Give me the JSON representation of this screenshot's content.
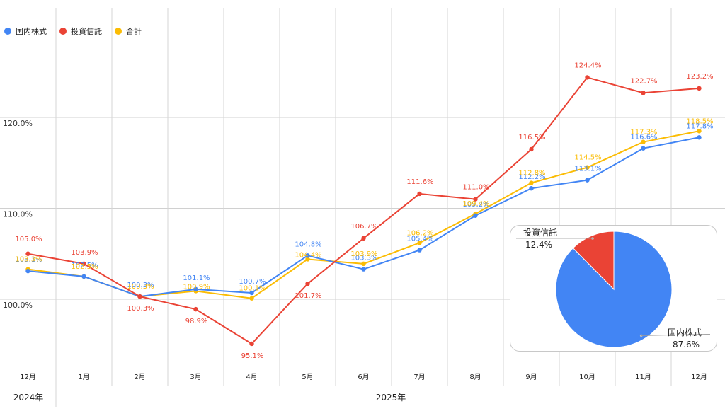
{
  "chart_data": [
    {
      "type": "line",
      "categories": [
        "12月",
        "1月",
        "2月",
        "3月",
        "4月",
        "5月",
        "6月",
        "7月",
        "8月",
        "9月",
        "10月",
        "11月",
        "12月"
      ],
      "year_labels": [
        "2024年",
        "2025年"
      ],
      "y_ticks": [
        "100.0%",
        "110.0%",
        "120.0%"
      ],
      "ylim": [
        92.4,
        132.0
      ],
      "grid": true,
      "legend": "top-left",
      "series": [
        {
          "name": "国内株式",
          "color": "#4285f4",
          "values": [
            103.1,
            102.5,
            100.3,
            101.1,
            100.7,
            104.8,
            103.3,
            105.4,
            109.2,
            112.2,
            113.1,
            116.6,
            117.8
          ]
        },
        {
          "name": "投資信託",
          "color": "#ea4335",
          "values": [
            105.0,
            103.9,
            100.3,
            98.9,
            95.1,
            101.7,
            106.7,
            111.6,
            111.0,
            116.5,
            124.4,
            122.7,
            123.2
          ]
        },
        {
          "name": "合計",
          "color": "#fbbc04",
          "values": [
            103.3,
            102.5,
            100.3,
            100.9,
            100.1,
            104.4,
            103.9,
            106.2,
            109.4,
            112.8,
            114.5,
            117.3,
            118.5
          ]
        }
      ],
      "data_labels": {
        "国内株式": [
          "103.1%",
          "102.5%",
          "100.3%",
          "101.1%",
          "100.7%",
          "104.8%",
          "103.3%",
          "105.4%",
          "109.2%",
          "112.2%",
          "113.1%",
          "116.6%",
          "117.8%"
        ],
        "投資信託": [
          "105.0%",
          "103.9%",
          "100.3%",
          "98.9%",
          "95.1%",
          "101.7%",
          "106.7%",
          "111.6%",
          "111.0%",
          "116.5%",
          "124.4%",
          "122.7%",
          "123.2%"
        ],
        "合計": [
          "103.3%",
          "102.5%",
          "100.3%",
          "100.9%",
          "100.1%",
          "104.4%",
          "103.9%",
          "106.2%",
          "109.4%",
          "112.8%",
          "114.5%",
          "117.3%",
          "118.5%"
        ]
      }
    },
    {
      "type": "pie",
      "slices": [
        {
          "name": "国内株式",
          "value": 87.6,
          "label": "87.6%",
          "color": "#4285f4"
        },
        {
          "name": "投資信託",
          "value": 12.4,
          "label": "12.4%",
          "color": "#ea4335"
        }
      ]
    }
  ]
}
